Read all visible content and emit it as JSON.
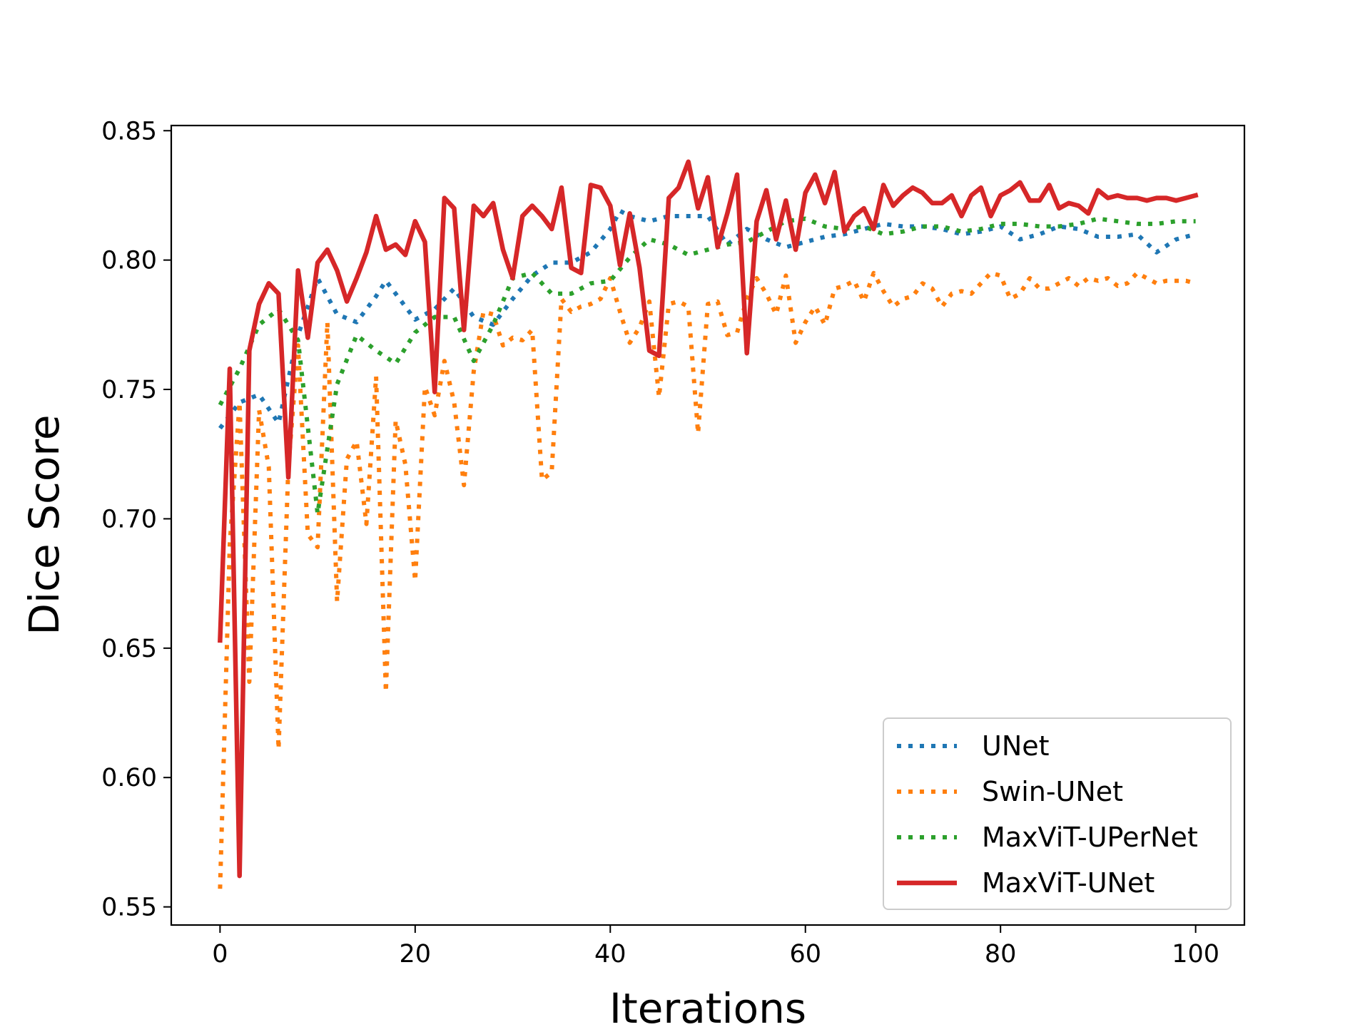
{
  "chart_data": {
    "type": "line",
    "xlabel": "Iterations",
    "ylabel": "Dice Score",
    "xlim": [
      -5,
      105
    ],
    "ylim": [
      0.543,
      0.852
    ],
    "xticks": [
      0,
      20,
      40,
      60,
      80,
      100
    ],
    "xtick_labels": [
      "0",
      "20",
      "40",
      "60",
      "80",
      "100"
    ],
    "yticks": [
      0.55,
      0.6,
      0.65,
      0.7,
      0.75,
      0.8,
      0.85
    ],
    "ytick_labels": [
      "0.55",
      "0.60",
      "0.65",
      "0.70",
      "0.75",
      "0.80",
      "0.85"
    ],
    "grid": false,
    "legend_position": "lower-right",
    "series": [
      {
        "name": "UNet",
        "color": "#1f77b4",
        "style": "dotted",
        "x": [
          0,
          2,
          4,
          6,
          8,
          10,
          12,
          14,
          16,
          17,
          18,
          20,
          22,
          24,
          26,
          28,
          30,
          32,
          34,
          36,
          38,
          40,
          41,
          42,
          44,
          46,
          48,
          50,
          52,
          54,
          56,
          58,
          60,
          62,
          64,
          66,
          68,
          70,
          72,
          74,
          76,
          78,
          80,
          82,
          84,
          86,
          88,
          90,
          92,
          94,
          96,
          98,
          100
        ],
        "y": [
          0.735,
          0.745,
          0.748,
          0.737,
          0.771,
          0.793,
          0.779,
          0.776,
          0.786,
          0.792,
          0.787,
          0.777,
          0.781,
          0.789,
          0.778,
          0.775,
          0.785,
          0.794,
          0.799,
          0.799,
          0.803,
          0.812,
          0.819,
          0.817,
          0.815,
          0.817,
          0.817,
          0.817,
          0.806,
          0.812,
          0.808,
          0.805,
          0.807,
          0.809,
          0.81,
          0.812,
          0.814,
          0.813,
          0.813,
          0.812,
          0.81,
          0.811,
          0.813,
          0.808,
          0.81,
          0.813,
          0.812,
          0.809,
          0.809,
          0.81,
          0.803,
          0.808,
          0.81
        ]
      },
      {
        "name": "Swin-UNet",
        "color": "#ff7f0e",
        "style": "dotted",
        "x": [
          0,
          1,
          2,
          3,
          4,
          5,
          6,
          7,
          8,
          9,
          10,
          11,
          12,
          13,
          14,
          15,
          16,
          17,
          18,
          19,
          20,
          21,
          22,
          23,
          24,
          25,
          26,
          27,
          28,
          29,
          30,
          31,
          32,
          33,
          34,
          35,
          36,
          37,
          38,
          39,
          40,
          41,
          42,
          43,
          44,
          45,
          46,
          47,
          48,
          49,
          50,
          51,
          52,
          53,
          54,
          55,
          56,
          57,
          58,
          59,
          60,
          61,
          62,
          63,
          64,
          65,
          66,
          67,
          68,
          69,
          70,
          71,
          72,
          73,
          74,
          75,
          76,
          77,
          78,
          79,
          80,
          81,
          82,
          83,
          84,
          85,
          86,
          87,
          88,
          89,
          90,
          91,
          92,
          93,
          94,
          95,
          96,
          97,
          98,
          99,
          100
        ],
        "y": [
          0.557,
          0.69,
          0.745,
          0.637,
          0.742,
          0.72,
          0.611,
          0.72,
          0.767,
          0.694,
          0.689,
          0.776,
          0.668,
          0.723,
          0.73,
          0.698,
          0.755,
          0.633,
          0.738,
          0.721,
          0.676,
          0.751,
          0.74,
          0.761,
          0.745,
          0.713,
          0.757,
          0.78,
          0.779,
          0.767,
          0.77,
          0.769,
          0.773,
          0.715,
          0.718,
          0.785,
          0.78,
          0.782,
          0.783,
          0.785,
          0.793,
          0.78,
          0.768,
          0.774,
          0.784,
          0.747,
          0.783,
          0.784,
          0.782,
          0.733,
          0.783,
          0.784,
          0.771,
          0.772,
          0.785,
          0.793,
          0.787,
          0.779,
          0.794,
          0.768,
          0.776,
          0.782,
          0.775,
          0.789,
          0.79,
          0.792,
          0.784,
          0.795,
          0.788,
          0.782,
          0.785,
          0.786,
          0.791,
          0.789,
          0.782,
          0.787,
          0.788,
          0.787,
          0.791,
          0.795,
          0.794,
          0.785,
          0.787,
          0.793,
          0.789,
          0.789,
          0.791,
          0.793,
          0.79,
          0.793,
          0.792,
          0.793,
          0.79,
          0.791,
          0.795,
          0.793,
          0.791,
          0.792,
          0.792,
          0.792,
          0.791
        ]
      },
      {
        "name": "MaxViT-UPerNet",
        "color": "#2ca02c",
        "style": "dotted",
        "x": [
          0,
          2,
          4,
          6,
          8,
          10,
          12,
          14,
          16,
          18,
          20,
          22,
          24,
          26,
          28,
          30,
          32,
          34,
          36,
          38,
          40,
          42,
          44,
          46,
          48,
          50,
          52,
          54,
          56,
          58,
          60,
          62,
          64,
          66,
          68,
          70,
          72,
          74,
          76,
          78,
          80,
          82,
          84,
          86,
          88,
          90,
          92,
          94,
          96,
          98,
          100
        ],
        "y": [
          0.744,
          0.758,
          0.775,
          0.781,
          0.769,
          0.702,
          0.752,
          0.771,
          0.765,
          0.76,
          0.772,
          0.778,
          0.778,
          0.761,
          0.775,
          0.793,
          0.795,
          0.787,
          0.787,
          0.791,
          0.792,
          0.801,
          0.808,
          0.806,
          0.802,
          0.804,
          0.806,
          0.807,
          0.811,
          0.815,
          0.816,
          0.813,
          0.812,
          0.813,
          0.81,
          0.811,
          0.813,
          0.813,
          0.811,
          0.812,
          0.814,
          0.814,
          0.813,
          0.813,
          0.814,
          0.816,
          0.815,
          0.814,
          0.814,
          0.815,
          0.815
        ]
      },
      {
        "name": "MaxViT-UNet",
        "color": "#d62728",
        "style": "solid",
        "x": [
          0,
          1,
          2,
          3,
          4,
          5,
          6,
          7,
          8,
          9,
          10,
          11,
          12,
          13,
          14,
          15,
          16,
          17,
          18,
          19,
          20,
          21,
          22,
          23,
          24,
          25,
          26,
          27,
          28,
          29,
          30,
          31,
          32,
          33,
          34,
          35,
          36,
          37,
          38,
          39,
          40,
          41,
          42,
          43,
          44,
          45,
          46,
          47,
          48,
          49,
          50,
          51,
          52,
          53,
          54,
          55,
          56,
          57,
          58,
          59,
          60,
          61,
          62,
          63,
          64,
          65,
          66,
          67,
          68,
          69,
          70,
          71,
          72,
          73,
          74,
          75,
          76,
          77,
          78,
          79,
          80,
          81,
          82,
          83,
          84,
          85,
          86,
          87,
          88,
          89,
          90,
          91,
          92,
          93,
          94,
          95,
          96,
          97,
          98,
          99,
          100
        ],
        "y": [
          0.653,
          0.758,
          0.562,
          0.765,
          0.783,
          0.791,
          0.787,
          0.716,
          0.796,
          0.77,
          0.799,
          0.804,
          0.796,
          0.784,
          0.793,
          0.803,
          0.817,
          0.804,
          0.806,
          0.802,
          0.815,
          0.807,
          0.749,
          0.824,
          0.82,
          0.773,
          0.821,
          0.817,
          0.822,
          0.804,
          0.793,
          0.817,
          0.821,
          0.817,
          0.812,
          0.828,
          0.797,
          0.795,
          0.829,
          0.828,
          0.821,
          0.798,
          0.818,
          0.797,
          0.765,
          0.763,
          0.824,
          0.828,
          0.838,
          0.82,
          0.832,
          0.805,
          0.818,
          0.833,
          0.764,
          0.815,
          0.827,
          0.808,
          0.823,
          0.804,
          0.826,
          0.833,
          0.822,
          0.834,
          0.811,
          0.817,
          0.82,
          0.812,
          0.829,
          0.821,
          0.825,
          0.828,
          0.826,
          0.822,
          0.822,
          0.825,
          0.817,
          0.825,
          0.828,
          0.817,
          0.825,
          0.827,
          0.83,
          0.823,
          0.823,
          0.829,
          0.82,
          0.822,
          0.821,
          0.818,
          0.827,
          0.824,
          0.825,
          0.824,
          0.824,
          0.823,
          0.824,
          0.824,
          0.823,
          0.824,
          0.825
        ]
      }
    ]
  }
}
